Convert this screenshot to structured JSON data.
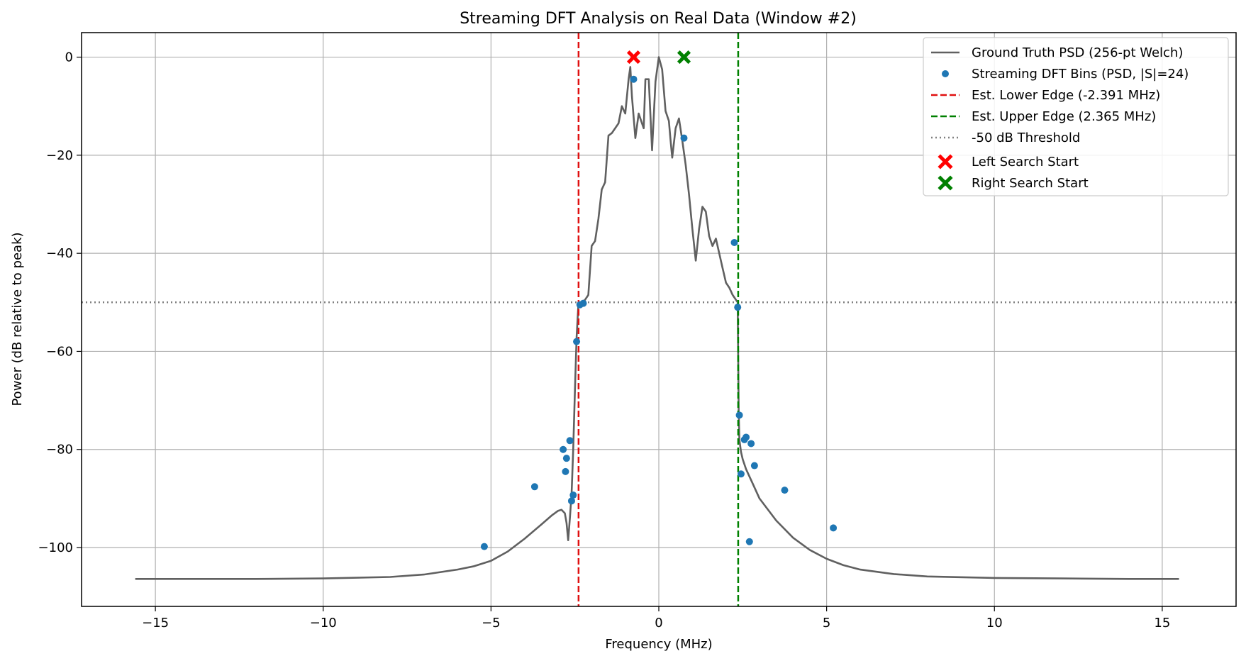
{
  "chart_data": {
    "type": "line",
    "title": "Streaming DFT Analysis on Real Data (Window #2)",
    "xlabel": "Frequency (MHz)",
    "ylabel": "Power (dB relative to peak)",
    "xlim": [
      -17.2,
      17.2
    ],
    "ylim": [
      -112,
      5
    ],
    "xticks": [
      -15,
      -10,
      -5,
      0,
      5,
      10,
      15
    ],
    "xtick_labels": [
      "−15",
      "−10",
      "−5",
      "0",
      "5",
      "10",
      "15"
    ],
    "yticks": [
      0,
      -20,
      -40,
      -60,
      -80,
      -100
    ],
    "ytick_labels": [
      "0",
      "−20",
      "−40",
      "−60",
      "−80",
      "−100"
    ],
    "grid": true,
    "legend_position": "top-right",
    "series": [
      {
        "name": "Ground Truth PSD (256-pt Welch)",
        "kind": "line",
        "color": "#606060",
        "x": [
          -15.6,
          -14,
          -12,
          -10,
          -8,
          -7,
          -6,
          -5.5,
          -5,
          -4.5,
          -4,
          -3.5,
          -3.2,
          -3.0,
          -2.9,
          -2.8,
          -2.75,
          -2.7,
          -2.65,
          -2.6,
          -2.55,
          -2.5,
          -2.45,
          -2.4,
          -2.35,
          -2.3,
          -2.25,
          -2.2,
          -2.1,
          -2.0,
          -1.9,
          -1.8,
          -1.7,
          -1.6,
          -1.5,
          -1.4,
          -1.3,
          -1.2,
          -1.1,
          -1.0,
          -0.9,
          -0.85,
          -0.8,
          -0.7,
          -0.6,
          -0.5,
          -0.45,
          -0.4,
          -0.3,
          -0.2,
          -0.1,
          0.0,
          0.1,
          0.2,
          0.3,
          0.35,
          0.4,
          0.5,
          0.6,
          0.7,
          0.8,
          0.9,
          1.0,
          1.1,
          1.2,
          1.3,
          1.4,
          1.5,
          1.6,
          1.7,
          1.8,
          1.9,
          2.0,
          2.1,
          2.2,
          2.25,
          2.3,
          2.35,
          2.38,
          2.4,
          2.45,
          2.5,
          2.6,
          2.8,
          3.0,
          3.5,
          4.0,
          4.5,
          5.0,
          5.5,
          6,
          7,
          8,
          10,
          12,
          14,
          15.5
        ],
        "y": [
          -106.4,
          -106.4,
          -106.4,
          -106.3,
          -106.0,
          -105.5,
          -104.5,
          -103.8,
          -102.7,
          -100.8,
          -98.2,
          -95.3,
          -93.5,
          -92.5,
          -92.3,
          -93.0,
          -95.0,
          -98.5,
          -94.0,
          -89.0,
          -80.0,
          -68.0,
          -57.0,
          -51.0,
          -50.3,
          -50.0,
          -49.8,
          -49.5,
          -48.5,
          -38.5,
          -37.5,
          -33.0,
          -27.0,
          -25.5,
          -16.0,
          -15.5,
          -14.5,
          -13.5,
          -10.0,
          -11.5,
          -4.5,
          -2.0,
          -8.0,
          -16.5,
          -11.5,
          -13.5,
          -14.5,
          -4.5,
          -4.5,
          -19.0,
          -5.0,
          0.0,
          -2.5,
          -11.0,
          -13.0,
          -17.0,
          -20.5,
          -14.5,
          -12.5,
          -17.0,
          -22.0,
          -28.0,
          -35.0,
          -41.5,
          -35.0,
          -30.5,
          -31.5,
          -36.5,
          -38.5,
          -37.0,
          -40.0,
          -43.0,
          -46.0,
          -47.0,
          -48.5,
          -49.0,
          -49.5,
          -50.0,
          -72.0,
          -78.0,
          -80.5,
          -82.0,
          -84.0,
          -87.0,
          -90.0,
          -94.5,
          -98.0,
          -100.5,
          -102.3,
          -103.6,
          -104.5,
          -105.4,
          -105.9,
          -106.2,
          -106.3,
          -106.4,
          -106.4
        ]
      },
      {
        "name": "Streaming DFT Bins (PSD, |S|=24)",
        "kind": "scatter",
        "color": "#1f77b4",
        "x": [
          -5.2,
          -3.7,
          -2.85,
          -2.78,
          -2.75,
          -2.65,
          -2.6,
          -2.55,
          -2.45,
          -2.35,
          -2.25,
          -0.75,
          0.75,
          2.25,
          2.35,
          2.4,
          2.45,
          2.55,
          2.6,
          2.7,
          2.75,
          2.85,
          3.75,
          5.2
        ],
        "y": [
          -99.8,
          -87.6,
          -80.0,
          -84.5,
          -81.8,
          -78.2,
          -90.5,
          -89.3,
          -58.0,
          -50.5,
          -50.2,
          -4.5,
          -16.5,
          -37.8,
          -51.0,
          -73.0,
          -85.0,
          -78.0,
          -77.5,
          -98.8,
          -78.8,
          -83.3,
          -88.3,
          -96.0
        ]
      }
    ],
    "markers": {
      "lower_edge": {
        "name": "Est. Lower Edge (-2.391 MHz)",
        "x": -2.391,
        "color": "#e01010",
        "style": "dashed"
      },
      "upper_edge": {
        "name": "Est. Upper Edge (2.365 MHz)",
        "x": 2.365,
        "color": "#008000",
        "style": "dashed"
      },
      "threshold": {
        "name": "-50 dB Threshold",
        "y": -50,
        "color": "#808080",
        "style": "dotted"
      },
      "left_search": {
        "name": "Left Search Start",
        "x": -0.75,
        "y": 0,
        "color": "#ff0000"
      },
      "right_search": {
        "name": "Right Search Start",
        "x": 0.75,
        "y": 0,
        "color": "#008000"
      }
    }
  }
}
